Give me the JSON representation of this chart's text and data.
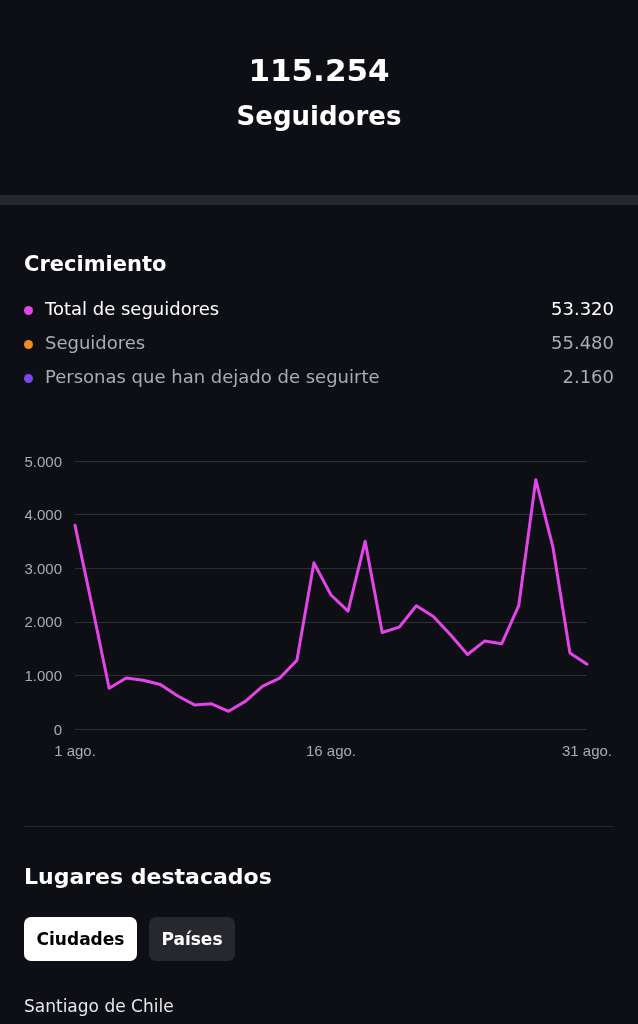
{
  "chart_data": {
    "type": "line",
    "title": "Crecimiento",
    "categories": [
      "1 ago.",
      null,
      null,
      null,
      null,
      null,
      null,
      null,
      null,
      null,
      null,
      null,
      null,
      null,
      null,
      "16 ago.",
      null,
      null,
      null,
      null,
      null,
      null,
      null,
      null,
      null,
      null,
      null,
      null,
      null,
      null,
      "31 ago."
    ],
    "series": [
      {
        "name": "Total de seguidores",
        "color": "#e445e8",
        "values": [
          3800,
          2300,
          760,
          950,
          910,
          830,
          620,
          450,
          470,
          330,
          520,
          800,
          950,
          1280,
          3100,
          2500,
          2200,
          3500,
          1800,
          1900,
          2300,
          2100,
          1760,
          1390,
          1640,
          1590,
          2300,
          4650,
          3400,
          1420,
          1210
        ]
      }
    ],
    "ylim": [
      0,
      5000
    ],
    "yticks": [
      0,
      {
        "value": 1000,
        "label": "1.000"
      },
      {
        "value": 2000,
        "label": "2.000"
      },
      {
        "value": 3000,
        "label": "3.000"
      },
      {
        "value": 4000,
        "label": "4.000"
      },
      {
        "value": 5000,
        "label": "5.000"
      }
    ],
    "grid": "y",
    "legend": "top",
    "marker": "none",
    "line_style": "solid",
    "annotations": [
      "115.254",
      "Seguidores",
      "53.320",
      "Seguidores",
      "55.480",
      "Personas que han dejado de seguirte",
      "2.160",
      "Lugares destacados",
      "Ciudades",
      "Países",
      "Santiago de Chile"
    ]
  }
}
